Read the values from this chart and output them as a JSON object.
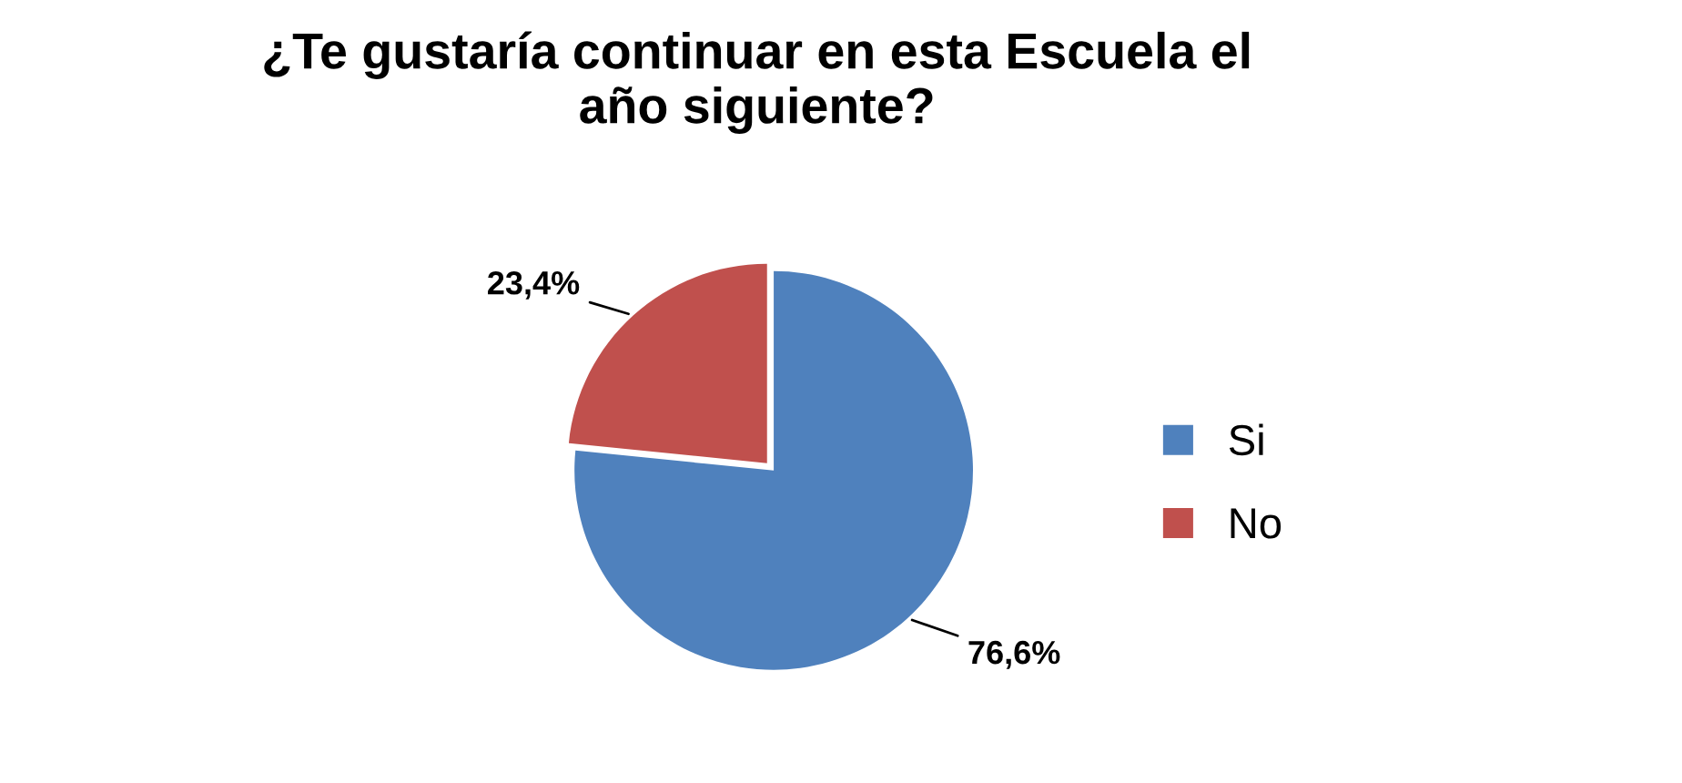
{
  "chart_data": {
    "type": "pie",
    "title": "¿Te gustaría continuar en esta Escuela el\naño siguiente?",
    "categories": [
      "Si",
      "No"
    ],
    "values": [
      76.6,
      23.4
    ],
    "colors": [
      "#4f81bd",
      "#c0504d"
    ],
    "value_labels": [
      "76,6%",
      "23,4%"
    ],
    "legend": "right"
  }
}
